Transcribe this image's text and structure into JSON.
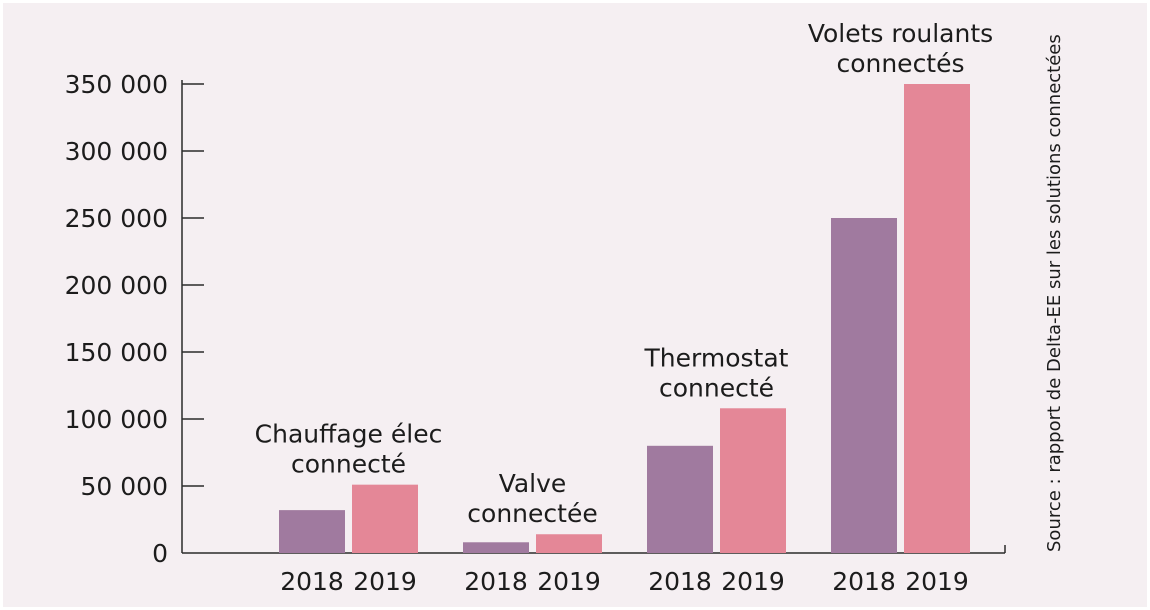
{
  "colors": {
    "background": "#f5eff2",
    "bar_2018": "#a07a9f",
    "bar_2019": "#e48797",
    "axis": "#2b2b2b",
    "text": "#1c1c1c"
  },
  "source": "Source : rapport de Delta-EE sur les solutions connectées",
  "chart_data": {
    "type": "bar",
    "title": "",
    "xlabel": "",
    "ylabel": "",
    "ylim": [
      0,
      350000
    ],
    "y_ticks": [
      0,
      50000,
      100000,
      150000,
      200000,
      250000,
      300000,
      350000
    ],
    "y_tick_labels": [
      "0",
      "50 000",
      "100 000",
      "150 000",
      "200 000",
      "250 000",
      "300 000",
      "350 000"
    ],
    "grid": false,
    "legend": "none",
    "series_labels": [
      "2018",
      "2019"
    ],
    "categories": [
      {
        "label_lines": [
          "Chauffage élec",
          "connecté"
        ]
      },
      {
        "label_lines": [
          "Valve",
          "connectée"
        ]
      },
      {
        "label_lines": [
          "Thermostat",
          "connecté"
        ]
      },
      {
        "label_lines": [
          "Volets roulants",
          "connectés"
        ]
      }
    ],
    "series": [
      {
        "values": [
          32000,
          8000,
          80000,
          250000
        ]
      },
      {
        "values": [
          51000,
          14000,
          108000,
          350000
        ]
      }
    ]
  }
}
